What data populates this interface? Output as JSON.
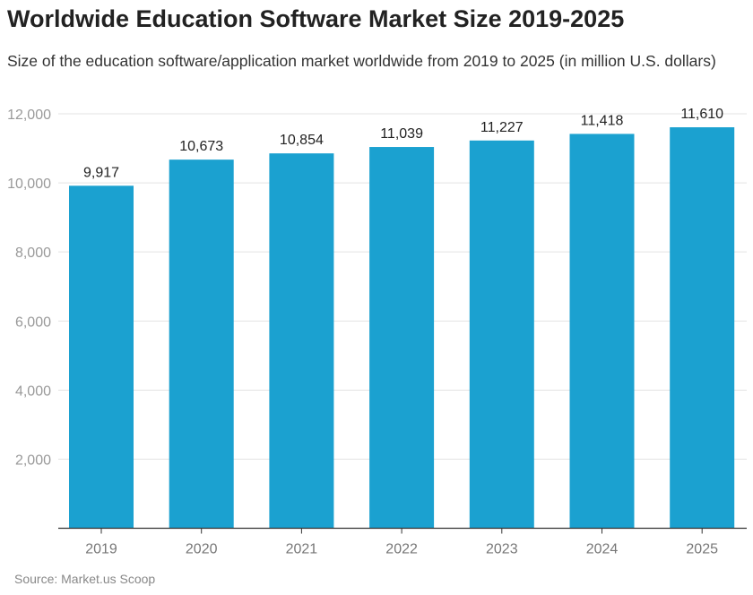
{
  "chart_data": {
    "type": "bar",
    "title": "Worldwide Education Software Market Size 2019-2025",
    "subtitle": "Size of the education software/application market worldwide from 2019 to 2025 (in million U.S. dollars)",
    "source": "Source: Market.us Scoop",
    "categories": [
      "2019",
      "2020",
      "2021",
      "2022",
      "2023",
      "2024",
      "2025"
    ],
    "values": [
      9917,
      10673,
      10854,
      11039,
      11227,
      11418,
      11610
    ],
    "data_labels": [
      "9,917",
      "10,673",
      "10,854",
      "11,039",
      "11,227",
      "11,418",
      "11,610"
    ],
    "xlabel": "",
    "ylabel": "",
    "ylim": [
      0,
      12000
    ],
    "yticks": [
      2000,
      4000,
      6000,
      8000,
      10000,
      12000
    ],
    "ytick_labels": [
      "2,000",
      "4,000",
      "6,000",
      "8,000",
      "10,000",
      "12,000"
    ],
    "grid": true,
    "bar_color": "#1ba1d0"
  }
}
